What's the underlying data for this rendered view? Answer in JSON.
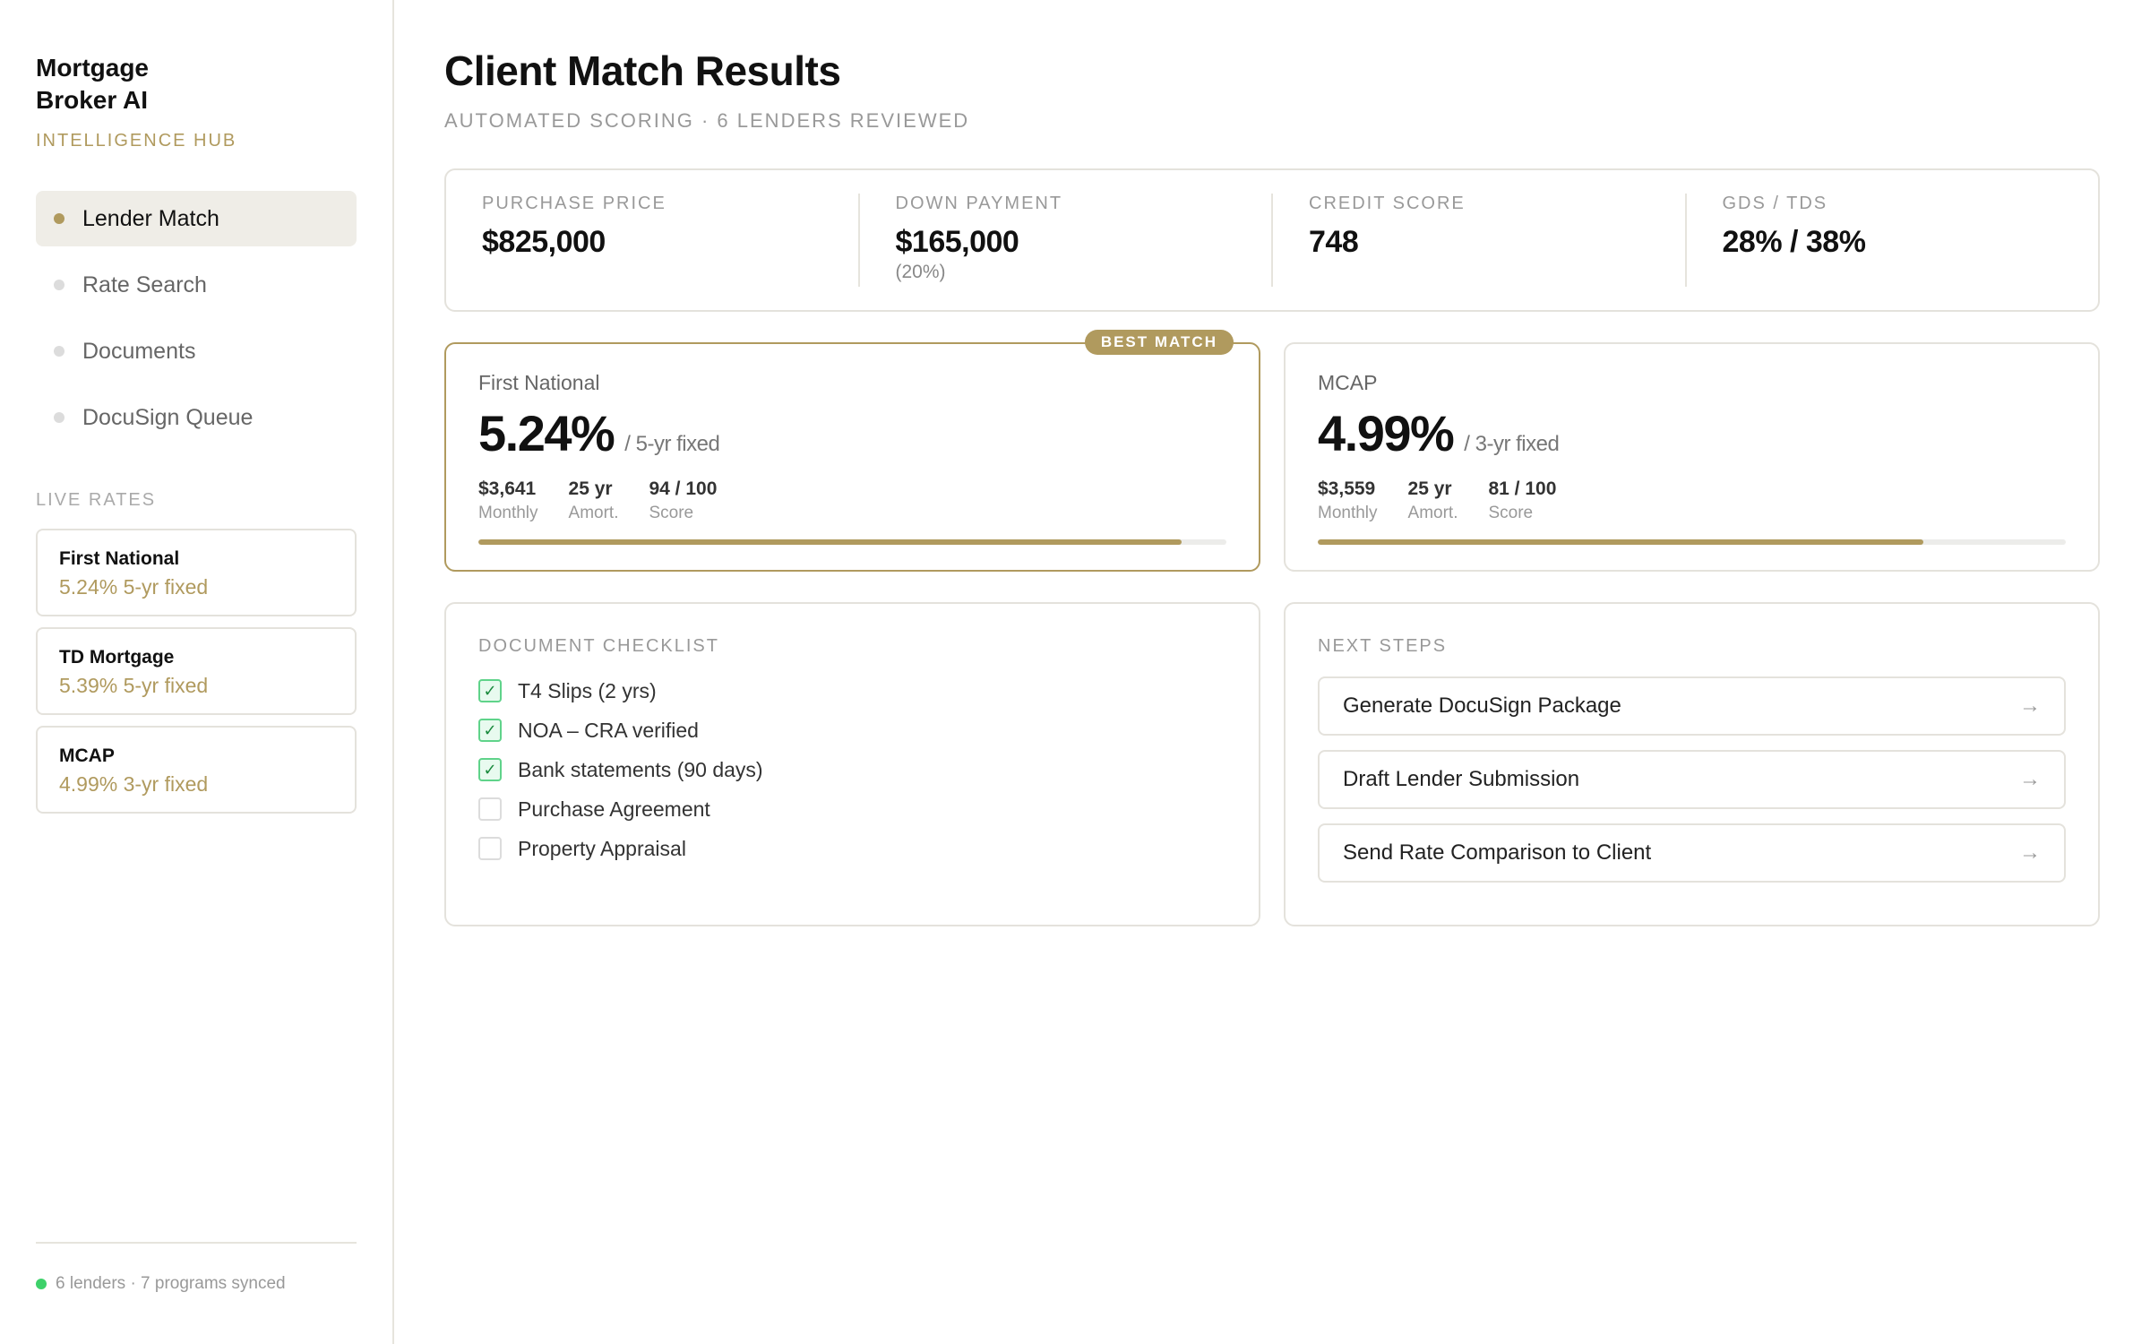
{
  "brand": {
    "line1": "Mortgage",
    "line2": "Broker AI",
    "subtitle": "INTELLIGENCE HUB"
  },
  "nav": [
    {
      "label": "Lender Match",
      "active": true
    },
    {
      "label": "Rate Search",
      "active": false
    },
    {
      "label": "Documents",
      "active": false
    },
    {
      "label": "DocuSign Queue",
      "active": false
    }
  ],
  "live_rates": {
    "label": "LIVE RATES",
    "items": [
      {
        "name": "First National",
        "rate": "5.24% 5-yr fixed"
      },
      {
        "name": "TD Mortgage",
        "rate": "5.39% 5-yr fixed"
      },
      {
        "name": "MCAP",
        "rate": "4.99% 3-yr fixed"
      }
    ]
  },
  "sync_status": "6 lenders · 7 programs synced",
  "header": {
    "title": "Client Match Results",
    "subtitle": "AUTOMATED SCORING · 6 LENDERS REVIEWED"
  },
  "stats": [
    {
      "label": "PURCHASE PRICE",
      "value": "$825,000",
      "note": ""
    },
    {
      "label": "DOWN PAYMENT",
      "value": "$165,000",
      "note": "(20%)"
    },
    {
      "label": "CREDIT SCORE",
      "value": "748",
      "note": ""
    },
    {
      "label": "GDS / TDS",
      "value": "28% / 38%",
      "note": ""
    }
  ],
  "lenders": [
    {
      "badge": "BEST MATCH",
      "name": "First National",
      "rate": "5.24%",
      "term": "/ 5-yr fixed",
      "monthly": "$3,641",
      "monthly_label": "Monthly",
      "amort": "25 yr",
      "amort_label": "Amort.",
      "score": "94 / 100",
      "score_label": "Score",
      "score_fraction": 0.94
    },
    {
      "badge": "",
      "name": "MCAP",
      "rate": "4.99%",
      "term": "/ 3-yr fixed",
      "monthly": "$3,559",
      "monthly_label": "Monthly",
      "amort": "25 yr",
      "amort_label": "Amort.",
      "score": "81 / 100",
      "score_label": "Score",
      "score_fraction": 0.81
    }
  ],
  "checklist": {
    "label": "DOCUMENT CHECKLIST",
    "items": [
      {
        "label": "T4 Slips (2 yrs)",
        "checked": true
      },
      {
        "label": "NOA – CRA verified",
        "checked": true
      },
      {
        "label": "Bank statements (90 days)",
        "checked": true
      },
      {
        "label": "Purchase Agreement",
        "checked": false
      },
      {
        "label": "Property Appraisal",
        "checked": false
      }
    ],
    "check_glyph": "✓"
  },
  "next_steps": {
    "label": "NEXT STEPS",
    "items": [
      {
        "label": "Generate DocuSign Package",
        "arrow": "→"
      },
      {
        "label": "Draft Lender Submission",
        "arrow": "→"
      },
      {
        "label": "Send Rate Comparison to Client",
        "arrow": "→"
      }
    ]
  },
  "colors": {
    "accent": "#b09a5e",
    "success": "#3ed16a",
    "nav_active_bg": "#efede7"
  }
}
